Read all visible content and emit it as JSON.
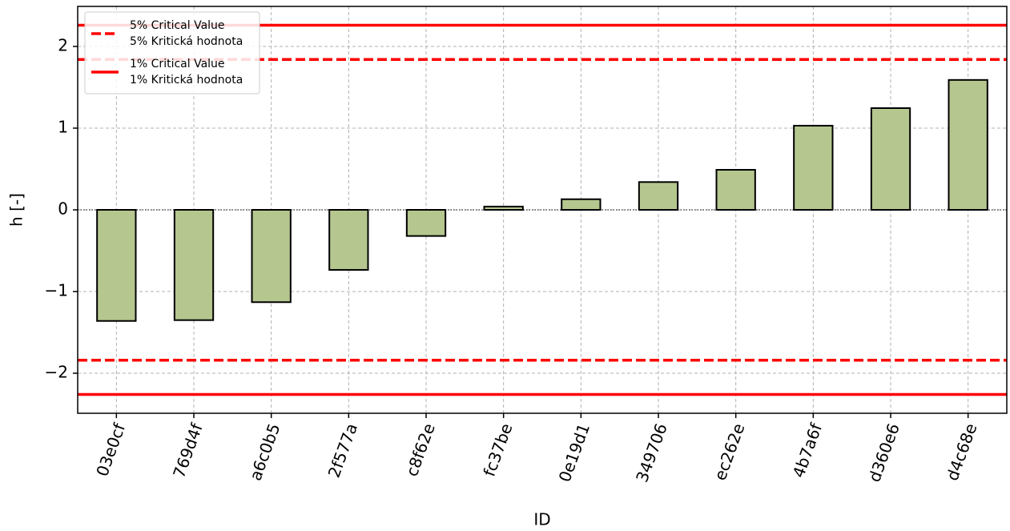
{
  "chart_data": {
    "type": "bar",
    "xlabel": "ID",
    "ylabel": "h [-]",
    "categories": [
      "03e0cf",
      "769d4f",
      "a6c0b5",
      "2f577a",
      "c8f62e",
      "fc37be",
      "0e19d1",
      "349706",
      "ec262e",
      "4b7a6f",
      "d360e6",
      "d4c68e"
    ],
    "values": [
      -1.36,
      -1.35,
      -1.13,
      -0.735,
      -0.32,
      0.04,
      0.13,
      0.34,
      0.49,
      1.03,
      1.245,
      1.59
    ],
    "color": "#b5c68f",
    "ylim": [
      -2.49,
      2.49
    ],
    "yticks": [
      {
        "value": -2,
        "label": "−2"
      },
      {
        "value": -1,
        "label": "−1"
      },
      0,
      1,
      2
    ],
    "grid": true,
    "legend": "upper left",
    "critical_lines": [
      {
        "name": [
          "5% Critical Value",
          "5% Kritická hodnota"
        ],
        "values": [
          1.84,
          -1.84
        ],
        "color": "#ff0000",
        "style": "dashed"
      },
      {
        "name": [
          "1% Critical Value",
          "1% Kritická hodnota"
        ],
        "values": [
          2.26,
          -2.26
        ],
        "color": "#ff0000",
        "style": "solid"
      }
    ]
  }
}
